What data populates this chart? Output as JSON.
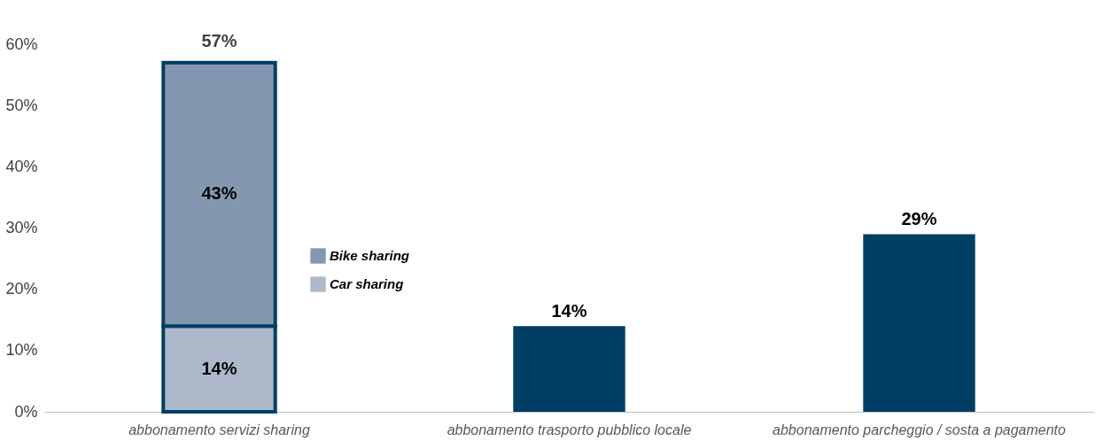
{
  "chart_data": {
    "type": "bar",
    "stacked": true,
    "categories": [
      "abbonamento servizi sharing",
      "abbonamento trasporto pubblico locale",
      "abbonamento parcheggio / sosta a pagamento"
    ],
    "series": [
      {
        "name": "Car sharing",
        "color": "#adb9ca",
        "values": [
          14,
          null,
          null
        ],
        "value_labels": [
          "14%",
          null,
          null
        ]
      },
      {
        "name": "Bike sharing",
        "color": "#8497b0",
        "values": [
          43,
          null,
          null
        ],
        "value_labels": [
          "43%",
          null,
          null
        ]
      },
      {
        "color": "#003f63",
        "values": [
          null,
          14,
          29
        ],
        "value_labels": [
          null,
          "14%",
          "29%"
        ]
      }
    ],
    "totals": [
      "57%",
      null,
      null
    ],
    "ylim": [
      0,
      60
    ],
    "yticks": [
      {
        "value": 0,
        "label": "0%"
      },
      {
        "value": 10,
        "label": "10%"
      },
      {
        "value": 20,
        "label": "20%"
      },
      {
        "value": 30,
        "label": "30%"
      },
      {
        "value": 40,
        "label": "40%"
      },
      {
        "value": 50,
        "label": "50%"
      },
      {
        "value": 60,
        "label": "60%"
      }
    ],
    "grid": false,
    "legend": "left"
  }
}
